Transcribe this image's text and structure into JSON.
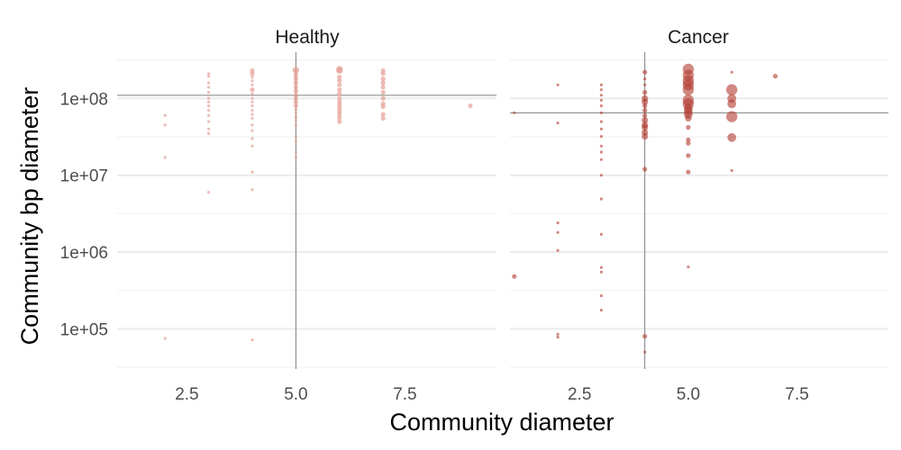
{
  "chart_data": {
    "type": "scatter",
    "xlabel": "Community diameter",
    "ylabel": "Community bp diameter",
    "y_scale": "log10",
    "grid": true,
    "legend": "none",
    "xlim": [
      0.9,
      9.6
    ],
    "ylim": [
      30000,
      400000000
    ],
    "x_ticks": [
      {
        "value": 2.5,
        "label": "2.5"
      },
      {
        "value": 5.0,
        "label": "5.0"
      },
      {
        "value": 7.5,
        "label": "7.5"
      }
    ],
    "y_ticks": [
      {
        "value": 100000,
        "label": "1e+05"
      },
      {
        "value": 1000000,
        "label": "1e+06"
      },
      {
        "value": 10000000,
        "label": "1e+07"
      },
      {
        "value": 100000000,
        "label": "1e+08"
      }
    ],
    "panels": [
      {
        "title": "Healthy",
        "color": "#e6a095",
        "opacity": 0.7,
        "ref_x": 5,
        "ref_y": 110000000,
        "points": [
          [
            2,
            60000000,
            1
          ],
          [
            2,
            45000000,
            1
          ],
          [
            2,
            17000000,
            1
          ],
          [
            2,
            75000,
            1
          ],
          [
            3,
            210000000,
            1
          ],
          [
            3,
            195000000,
            1
          ],
          [
            3,
            160000000,
            1
          ],
          [
            3,
            140000000,
            1
          ],
          [
            3,
            120000000,
            1
          ],
          [
            3,
            100000000,
            1
          ],
          [
            3,
            90000000,
            1
          ],
          [
            3,
            80000000,
            1
          ],
          [
            3,
            70000000,
            1
          ],
          [
            3,
            60000000,
            1
          ],
          [
            3,
            50000000,
            1
          ],
          [
            3,
            40000000,
            1
          ],
          [
            3,
            35000000,
            1
          ],
          [
            3,
            6000000,
            1
          ],
          [
            4,
            230000000,
            2
          ],
          [
            4,
            210000000,
            2
          ],
          [
            4,
            190000000,
            1
          ],
          [
            4,
            170000000,
            1
          ],
          [
            4,
            150000000,
            1
          ],
          [
            4,
            130000000,
            2
          ],
          [
            4,
            115000000,
            1
          ],
          [
            4,
            100000000,
            1
          ],
          [
            4,
            90000000,
            1
          ],
          [
            4,
            80000000,
            1
          ],
          [
            4,
            70000000,
            1
          ],
          [
            4,
            62000000,
            1
          ],
          [
            4,
            55000000,
            1
          ],
          [
            4,
            45000000,
            1
          ],
          [
            4,
            38000000,
            1
          ],
          [
            4,
            30000000,
            1
          ],
          [
            4,
            24000000,
            1
          ],
          [
            4,
            11000000,
            1
          ],
          [
            4,
            6500000,
            1
          ],
          [
            4,
            72000,
            1
          ],
          [
            5,
            235000000,
            3
          ],
          [
            5,
            220000000,
            2
          ],
          [
            5,
            200000000,
            2
          ],
          [
            5,
            180000000,
            2
          ],
          [
            5,
            160000000,
            2
          ],
          [
            5,
            140000000,
            2
          ],
          [
            5,
            125000000,
            2
          ],
          [
            5,
            110000000,
            2
          ],
          [
            5,
            100000000,
            2
          ],
          [
            5,
            90000000,
            2
          ],
          [
            5,
            80000000,
            2
          ],
          [
            5,
            72000000,
            1
          ],
          [
            5,
            65000000,
            1
          ],
          [
            5,
            58000000,
            1
          ],
          [
            5,
            52000000,
            1
          ],
          [
            5,
            45000000,
            1
          ],
          [
            5,
            32000000,
            1
          ],
          [
            5,
            28000000,
            1
          ],
          [
            5,
            20000000,
            1
          ],
          [
            5,
            17000000,
            1
          ],
          [
            6,
            240000000,
            3
          ],
          [
            6,
            230000000,
            3
          ],
          [
            6,
            190000000,
            2
          ],
          [
            6,
            170000000,
            2
          ],
          [
            6,
            150000000,
            2
          ],
          [
            6,
            130000000,
            2
          ],
          [
            6,
            115000000,
            2
          ],
          [
            6,
            100000000,
            2
          ],
          [
            6,
            90000000,
            2
          ],
          [
            6,
            82000000,
            2
          ],
          [
            6,
            75000000,
            2
          ],
          [
            6,
            68000000,
            2
          ],
          [
            6,
            62000000,
            2
          ],
          [
            6,
            56000000,
            2
          ],
          [
            6,
            50000000,
            2
          ],
          [
            7,
            230000000,
            2
          ],
          [
            7,
            210000000,
            2
          ],
          [
            7,
            180000000,
            2
          ],
          [
            7,
            160000000,
            2
          ],
          [
            7,
            140000000,
            2
          ],
          [
            7,
            120000000,
            2
          ],
          [
            7,
            100000000,
            2
          ],
          [
            7,
            85000000,
            2
          ],
          [
            7,
            78000000,
            2
          ],
          [
            7,
            62000000,
            2
          ],
          [
            7,
            55000000,
            2
          ],
          [
            9,
            80000000,
            2
          ]
        ]
      },
      {
        "title": "Cancer",
        "color": "#b03a2e",
        "opacity": 0.6,
        "ref_x": 4,
        "ref_y": 65000000,
        "points": [
          [
            1,
            65000000,
            1
          ],
          [
            1,
            480000,
            2
          ],
          [
            2,
            150000000,
            1
          ],
          [
            2,
            48000000,
            1
          ],
          [
            2,
            2400000,
            1
          ],
          [
            2,
            1800000,
            1
          ],
          [
            2,
            1050000,
            1
          ],
          [
            2,
            85000,
            1
          ],
          [
            2,
            78000,
            1
          ],
          [
            3,
            150000000,
            1
          ],
          [
            3,
            130000000,
            1
          ],
          [
            3,
            110000000,
            1
          ],
          [
            3,
            95000000,
            1
          ],
          [
            3,
            80000000,
            1
          ],
          [
            3,
            65000000,
            1
          ],
          [
            3,
            50000000,
            1
          ],
          [
            3,
            40000000,
            1
          ],
          [
            3,
            32000000,
            1
          ],
          [
            3,
            24000000,
            1
          ],
          [
            3,
            20000000,
            1
          ],
          [
            3,
            16000000,
            1
          ],
          [
            3,
            10000000,
            1
          ],
          [
            3,
            4900000,
            1
          ],
          [
            3,
            1700000,
            1
          ],
          [
            3,
            630000,
            1
          ],
          [
            3,
            550000,
            1
          ],
          [
            3,
            270000,
            1
          ],
          [
            3,
            175000,
            1
          ],
          [
            4,
            220000000,
            2
          ],
          [
            4,
            180000000,
            1
          ],
          [
            4,
            150000000,
            1
          ],
          [
            4,
            120000000,
            2
          ],
          [
            4,
            100000000,
            3
          ],
          [
            4,
            90000000,
            3
          ],
          [
            4,
            80000000,
            2
          ],
          [
            4,
            70000000,
            2
          ],
          [
            4,
            60000000,
            2
          ],
          [
            4,
            52000000,
            3
          ],
          [
            4,
            45000000,
            3
          ],
          [
            4,
            42000000,
            3
          ],
          [
            4,
            36000000,
            3
          ],
          [
            4,
            32000000,
            3
          ],
          [
            4,
            12000000,
            2
          ],
          [
            4,
            80000,
            2
          ],
          [
            4,
            50000,
            1
          ],
          [
            5,
            240000000,
            5
          ],
          [
            5,
            200000000,
            5
          ],
          [
            5,
            170000000,
            5
          ],
          [
            5,
            150000000,
            5
          ],
          [
            5,
            130000000,
            5
          ],
          [
            5,
            95000000,
            5
          ],
          [
            5,
            85000000,
            5
          ],
          [
            5,
            75000000,
            4
          ],
          [
            5,
            68000000,
            4
          ],
          [
            5,
            62000000,
            4
          ],
          [
            5,
            55000000,
            3
          ],
          [
            5,
            42000000,
            2
          ],
          [
            5,
            29000000,
            2
          ],
          [
            5,
            26000000,
            2
          ],
          [
            5,
            18000000,
            2
          ],
          [
            5,
            11000000,
            2
          ],
          [
            5,
            640000,
            1
          ],
          [
            6,
            220000000,
            1
          ],
          [
            6,
            130000000,
            5
          ],
          [
            6,
            100000000,
            4
          ],
          [
            6,
            85000000,
            4
          ],
          [
            6,
            58000000,
            5
          ],
          [
            6,
            31000000,
            4
          ],
          [
            6,
            11500000,
            1
          ],
          [
            7,
            195000000,
            2
          ]
        ]
      }
    ]
  }
}
